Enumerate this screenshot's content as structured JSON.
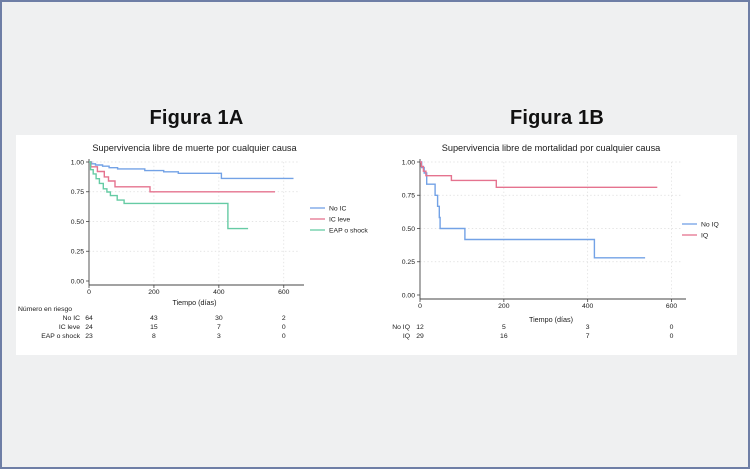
{
  "page": {
    "background": "#eff0f1",
    "border_color": "#6e7ea6",
    "panel_background": "#ffffff",
    "grid_color": "#dcdcdc",
    "axis_color": "#444444"
  },
  "chart_data": [
    {
      "type": "line",
      "subtype": "kaplan-meier-step",
      "heading": "Figura 1A",
      "title": "Supervivencia libre de muerte por cualquier causa",
      "xlabel": "Tiempo (días)",
      "ylabel": "",
      "xlim": [
        0,
        650
      ],
      "ylim": [
        0,
        1
      ],
      "xticks": [
        0,
        200,
        400,
        600
      ],
      "yticks": [
        0,
        0.25,
        0.5,
        0.75,
        1
      ],
      "ytick_labels": [
        "0.00",
        "0.25",
        "0.50",
        "0.75",
        "1.00"
      ],
      "grid": true,
      "legend_position": "right",
      "series": [
        {
          "name": "No IC",
          "color": "#73a2e6",
          "points": [
            [
              0,
              1.0
            ],
            [
              8,
              0.985
            ],
            [
              20,
              0.975
            ],
            [
              42,
              0.965
            ],
            [
              62,
              0.952
            ],
            [
              88,
              0.942
            ],
            [
              172,
              0.928
            ],
            [
              230,
              0.918
            ],
            [
              275,
              0.905
            ],
            [
              408,
              0.862
            ],
            [
              630,
              0.862
            ]
          ]
        },
        {
          "name": "IC leve",
          "color": "#e5738f",
          "points": [
            [
              0,
              1.0
            ],
            [
              6,
              0.96
            ],
            [
              26,
              0.92
            ],
            [
              47,
              0.875
            ],
            [
              60,
              0.84
            ],
            [
              80,
              0.792
            ],
            [
              188,
              0.75
            ],
            [
              573,
              0.75
            ]
          ]
        },
        {
          "name": "EAP o shock",
          "color": "#66cba4",
          "points": [
            [
              0,
              1.0
            ],
            [
              5,
              0.935
            ],
            [
              13,
              0.9
            ],
            [
              22,
              0.86
            ],
            [
              32,
              0.82
            ],
            [
              44,
              0.775
            ],
            [
              55,
              0.748
            ],
            [
              66,
              0.718
            ],
            [
              87,
              0.68
            ],
            [
              108,
              0.652
            ],
            [
              428,
              0.44
            ],
            [
              490,
              0.44
            ]
          ]
        }
      ],
      "risk_table": {
        "header": "Número en riesgo",
        "columns_at_days": [
          0,
          200,
          400,
          600
        ],
        "rows": [
          {
            "label": "No IC",
            "values": [
              "64",
              "43",
              "30",
              "2"
            ]
          },
          {
            "label": "IC leve",
            "values": [
              "24",
              "15",
              "7",
              "0"
            ]
          },
          {
            "label": "EAP o shock",
            "values": [
              "23",
              "8",
              "3",
              "0"
            ]
          }
        ]
      }
    },
    {
      "type": "line",
      "subtype": "kaplan-meier-step",
      "heading": "Figura 1B",
      "title": "Supervivencia libre de mortalidad por cualquier causa",
      "xlabel": "Tiempo (días)",
      "ylabel": "",
      "xlim": [
        0,
        625
      ],
      "ylim": [
        0,
        1
      ],
      "xticks": [
        0,
        200,
        400,
        600
      ],
      "yticks": [
        0,
        0.25,
        0.5,
        0.75,
        1
      ],
      "ytick_labels": [
        "0.00",
        "0.25",
        "0.50",
        "0.75",
        "1.00"
      ],
      "grid": true,
      "legend_position": "right",
      "series": [
        {
          "name": "No IQ",
          "color": "#73a2e6",
          "points": [
            [
              0,
              1.0
            ],
            [
              4,
              0.958
            ],
            [
              10,
              0.917
            ],
            [
              16,
              0.833
            ],
            [
              36,
              0.75
            ],
            [
              42,
              0.667
            ],
            [
              46,
              0.583
            ],
            [
              48,
              0.5
            ],
            [
              107,
              0.417
            ],
            [
              416,
              0.28
            ],
            [
              537,
              0.28
            ]
          ]
        },
        {
          "name": "IQ",
          "color": "#e5738f",
          "points": [
            [
              0,
              1.0
            ],
            [
              3,
              0.966
            ],
            [
              8,
              0.931
            ],
            [
              14,
              0.897
            ],
            [
              75,
              0.862
            ],
            [
              182,
              0.81
            ],
            [
              566,
              0.81
            ]
          ]
        }
      ],
      "risk_table": {
        "header": "",
        "columns_at_days": [
          0,
          200,
          400,
          600
        ],
        "rows": [
          {
            "label": "No IQ",
            "values": [
              "12",
              "5",
              "3",
              "0"
            ]
          },
          {
            "label": "IQ",
            "values": [
              "29",
              "16",
              "7",
              "0"
            ]
          }
        ]
      }
    }
  ]
}
